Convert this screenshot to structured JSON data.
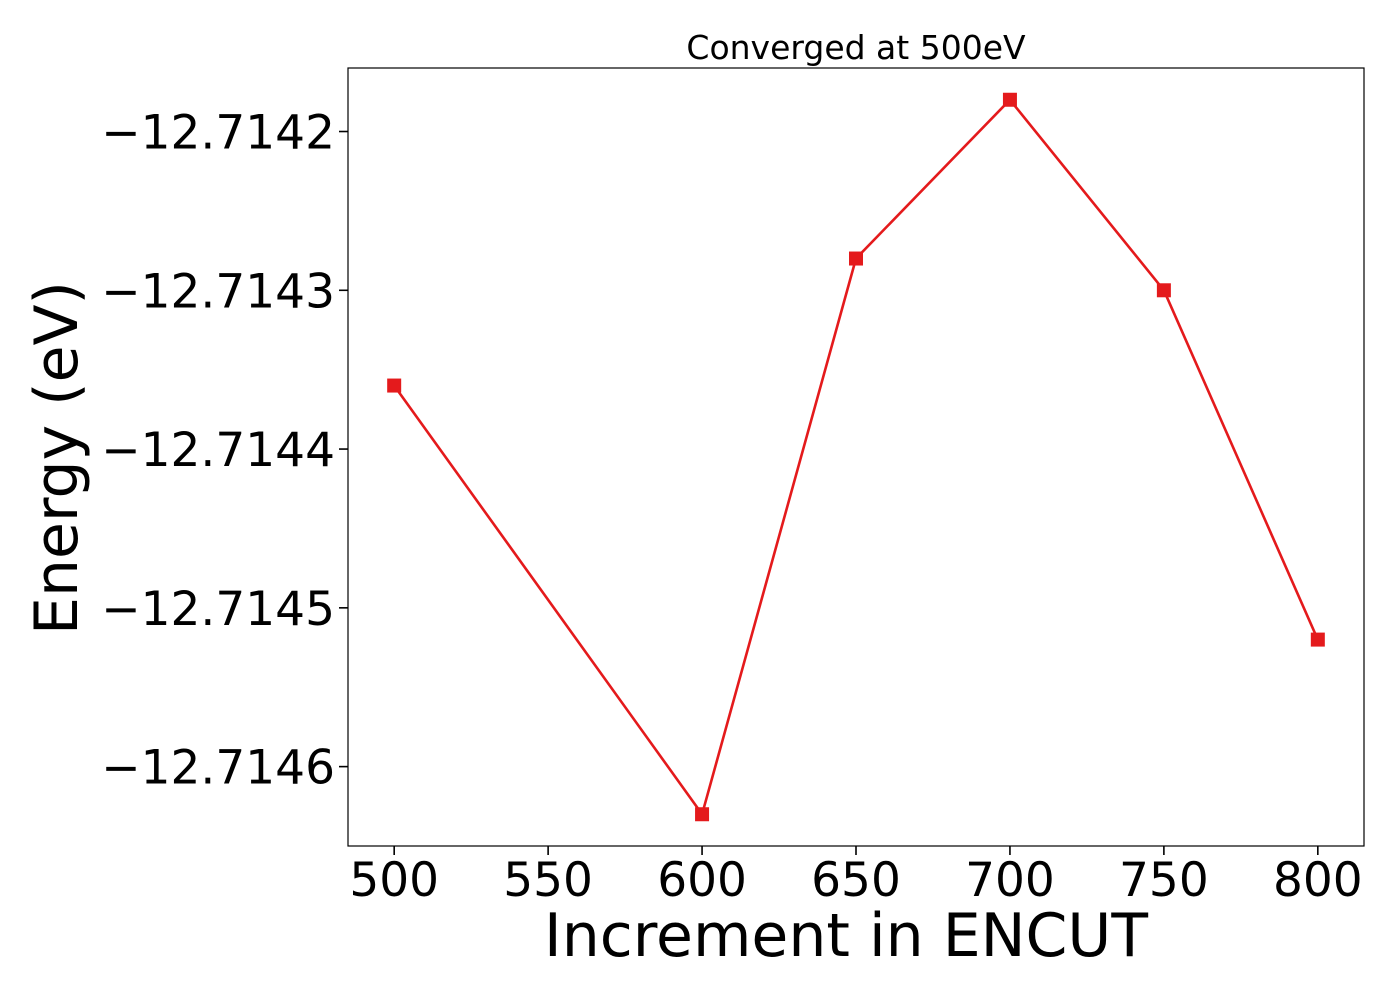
{
  "chart_data": {
    "type": "line",
    "title": "Converged at 500eV",
    "xlabel": "Increment in ENCUT",
    "ylabel": "Energy (eV)",
    "x": [
      500,
      600,
      650,
      700,
      750,
      800
    ],
    "series": [
      {
        "values": [
          -12.71436,
          -12.71463,
          -12.71428,
          -12.71418,
          -12.7143,
          -12.71452
        ],
        "color": "#e41a1c",
        "marker": "square"
      }
    ],
    "xticks": [
      500,
      550,
      600,
      650,
      700,
      750,
      800
    ],
    "xtick_labels": [
      "500",
      "550",
      "600",
      "650",
      "700",
      "750",
      "800"
    ],
    "yticks": [
      -12.7142,
      -12.7143,
      -12.7144,
      -12.7145,
      -12.7146
    ],
    "ytick_labels": [
      "−12.7142",
      "−12.7143",
      "−12.7144",
      "−12.7145",
      "−12.7146"
    ],
    "xlim": [
      485,
      815
    ],
    "ylim": [
      -12.71465,
      -12.71416
    ],
    "grid": false,
    "legend": "none"
  }
}
